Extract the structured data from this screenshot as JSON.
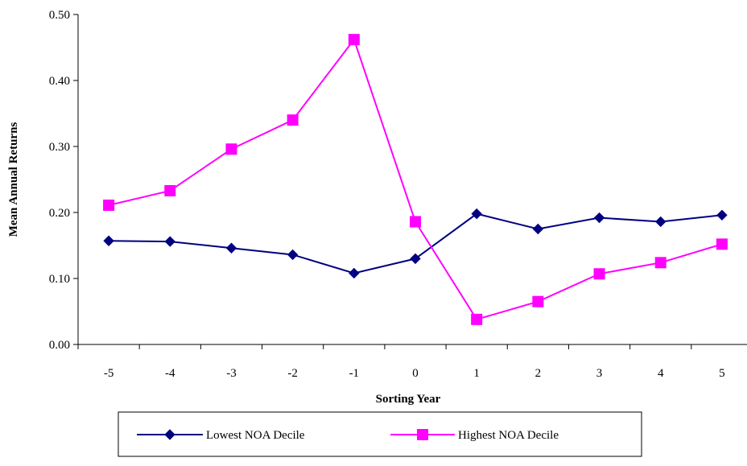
{
  "chart_data": {
    "type": "line",
    "title": "",
    "xlabel": "Sorting Year",
    "ylabel": "Mean Annual Returns",
    "categories": [
      "-5",
      "-4",
      "-3",
      "-2",
      "-1",
      "0",
      "1",
      "2",
      "3",
      "4",
      "5"
    ],
    "ylim": [
      0,
      0.5
    ],
    "yticks": [
      "0.00",
      "0.10",
      "0.20",
      "0.30",
      "0.40",
      "0.50"
    ],
    "yticks_values": [
      0,
      0.1,
      0.2,
      0.3,
      0.4,
      0.5
    ],
    "grid": false,
    "legend_position": "bottom",
    "series": [
      {
        "name": "Lowest NOA Decile",
        "color": "#000080",
        "marker": "diamond",
        "values": [
          0.157,
          0.156,
          0.146,
          0.136,
          0.108,
          0.13,
          0.198,
          0.175,
          0.192,
          0.186,
          0.196
        ]
      },
      {
        "name": "Highest NOA Decile",
        "color": "#FF00FF",
        "marker": "square",
        "values": [
          0.211,
          0.233,
          0.296,
          0.34,
          0.462,
          0.186,
          0.038,
          0.065,
          0.107,
          0.124,
          0.152
        ]
      }
    ]
  }
}
